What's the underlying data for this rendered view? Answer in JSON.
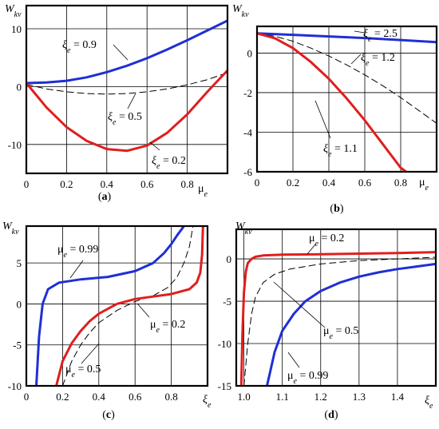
{
  "chart_data": [
    {
      "type": "line",
      "caption": "(a)",
      "ylabel": "W",
      "ylabel_sub": "kv",
      "xlabel": "μ",
      "xlabel_sub": "e",
      "xlim": [
        0,
        1.0
      ],
      "ylim": [
        -15,
        14
      ],
      "xticks": [
        "0",
        "0.2",
        "0.4",
        "0.6",
        "0.8"
      ],
      "xtick_values": [
        0,
        0.2,
        0.4,
        0.6,
        0.8
      ],
      "yticks": [
        "10",
        "0",
        "-10"
      ],
      "ytick_values": [
        10,
        0,
        -10
      ],
      "grid": true,
      "series": [
        {
          "name": "ξe = 0.9",
          "color": "#1f2fd6",
          "style": "solid",
          "x": [
            0,
            0.1,
            0.2,
            0.3,
            0.4,
            0.5,
            0.6,
            0.7,
            0.8,
            0.9,
            1.0
          ],
          "y": [
            0.6,
            0.7,
            1.0,
            1.6,
            2.5,
            3.6,
            4.9,
            6.4,
            8.0,
            9.7,
            11.4
          ]
        },
        {
          "name": "ξe = 0.5",
          "color": "#000000",
          "style": "dashed",
          "x": [
            0,
            0.1,
            0.2,
            0.3,
            0.4,
            0.5,
            0.6,
            0.7,
            0.8,
            0.9,
            1.0
          ],
          "y": [
            0.4,
            -0.4,
            -0.9,
            -1.2,
            -1.3,
            -1.2,
            -0.9,
            -0.4,
            0.3,
            1.2,
            2.4
          ]
        },
        {
          "name": "ξe = 0.2",
          "color": "#e01e1e",
          "style": "solid",
          "x": [
            0,
            0.1,
            0.2,
            0.3,
            0.4,
            0.5,
            0.6,
            0.7,
            0.8,
            0.9,
            1.0
          ],
          "y": [
            0.6,
            -3.6,
            -7.0,
            -9.4,
            -10.8,
            -11.1,
            -10.2,
            -8.0,
            -4.8,
            -0.9,
            2.8
          ]
        }
      ],
      "annotations": [
        {
          "sym": "ξ",
          "sub": "e",
          "rest": " = 0.9"
        },
        {
          "sym": "ξ",
          "sub": "e",
          "rest": " = 0.5"
        },
        {
          "sym": "ξ",
          "sub": "e",
          "rest": " = 0.2"
        }
      ]
    },
    {
      "type": "line",
      "caption": "(b)",
      "ylabel": "W",
      "ylabel_sub": "kv",
      "xlabel": "μ",
      "xlabel_sub": "e",
      "xlim": [
        0,
        1.0
      ],
      "ylim": [
        -6,
        1.35
      ],
      "xticks": [
        "0",
        "0.2",
        "0.4",
        "0.6",
        "0.8"
      ],
      "xtick_values": [
        0,
        0.2,
        0.4,
        0.6,
        0.8
      ],
      "yticks": [
        "0",
        "-2",
        "-4",
        "-6"
      ],
      "ytick_values": [
        0,
        -2,
        -4,
        -6
      ],
      "grid": true,
      "series": [
        {
          "name": "ξe = 2.5",
          "color": "#1f2fd6",
          "style": "solid",
          "x": [
            0,
            0.2,
            0.4,
            0.6,
            0.8,
            1.0
          ],
          "y": [
            1.0,
            0.92,
            0.84,
            0.76,
            0.66,
            0.55
          ]
        },
        {
          "name": "ξe = 1.2",
          "color": "#000000",
          "style": "dashed",
          "x": [
            0,
            0.1,
            0.2,
            0.3,
            0.4,
            0.5,
            0.6,
            0.7,
            0.8,
            0.9,
            1.0
          ],
          "y": [
            1.0,
            0.85,
            0.6,
            0.25,
            -0.15,
            -0.6,
            -1.1,
            -1.65,
            -2.25,
            -2.9,
            -3.55
          ]
        },
        {
          "name": "ξe = 1.1",
          "color": "#e01e1e",
          "style": "solid",
          "x": [
            0,
            0.1,
            0.2,
            0.3,
            0.4,
            0.5,
            0.6,
            0.7,
            0.8,
            0.83
          ],
          "y": [
            1.0,
            0.75,
            0.25,
            -0.45,
            -1.3,
            -2.3,
            -3.4,
            -4.6,
            -5.8,
            -6.0
          ]
        }
      ],
      "annotations": [
        {
          "sym": "ξ",
          "sub": "e",
          "rest": " = 2.5"
        },
        {
          "sym": "ξ",
          "sub": "e",
          "rest": " = 1.2"
        },
        {
          "sym": "ξ",
          "sub": "e",
          "rest": " = 1.1"
        }
      ]
    },
    {
      "type": "line",
      "caption": "(c)",
      "ylabel": "W",
      "ylabel_sub": "kv",
      "xlabel": "ξ",
      "xlabel_sub": "e",
      "xlim": [
        0,
        1.0
      ],
      "ylim": [
        -10,
        9.5
      ],
      "xticks": [
        "0",
        "0.2",
        "0.4",
        "0.6",
        "0.8"
      ],
      "xtick_values": [
        0,
        0.2,
        0.4,
        0.6,
        0.8
      ],
      "yticks": [
        "5",
        "0",
        "-5",
        "-10"
      ],
      "ytick_values": [
        5,
        0,
        -5,
        -10
      ],
      "grid": true,
      "series": [
        {
          "name": "μe = 0.99",
          "color": "#1f2fd6",
          "style": "solid",
          "x": [
            0.055,
            0.07,
            0.09,
            0.12,
            0.18,
            0.3,
            0.45,
            0.6,
            0.7,
            0.76,
            0.8,
            0.83,
            0.87
          ],
          "y": [
            -10.0,
            -4.0,
            0.0,
            1.8,
            2.6,
            3.0,
            3.3,
            4.0,
            5.0,
            6.2,
            7.3,
            8.3,
            9.5
          ]
        },
        {
          "name": "μe = 0.5",
          "color": "#000000",
          "style": "dashed",
          "x": [
            0.2,
            0.25,
            0.3,
            0.35,
            0.4,
            0.5,
            0.6,
            0.7,
            0.78,
            0.83,
            0.87,
            0.9,
            0.92
          ],
          "y": [
            -10.0,
            -7.0,
            -5.0,
            -3.5,
            -2.3,
            -0.8,
            0.3,
            1.0,
            2.0,
            3.2,
            5.0,
            7.0,
            9.5
          ]
        },
        {
          "name": "μe = 0.2",
          "color": "#e01e1e",
          "style": "solid",
          "x": [
            0.165,
            0.2,
            0.25,
            0.3,
            0.35,
            0.4,
            0.5,
            0.6,
            0.7,
            0.8,
            0.9,
            0.94,
            0.96,
            0.97,
            0.975
          ],
          "y": [
            -10.0,
            -7.0,
            -4.8,
            -3.3,
            -2.1,
            -1.2,
            0.0,
            0.6,
            0.9,
            1.2,
            1.8,
            2.6,
            3.8,
            6.0,
            9.5
          ]
        }
      ],
      "annotations": [
        {
          "sym": "μ",
          "sub": "e",
          "rest": " = 0.99"
        },
        {
          "sym": "μ",
          "sub": "e",
          "rest": " = 0.2"
        },
        {
          "sym": "μ",
          "sub": "e",
          "rest": " = 0.5"
        }
      ]
    },
    {
      "type": "line",
      "caption": "(d)",
      "ylabel": "W",
      "ylabel_sub": "kv",
      "xlabel": "ξ",
      "xlabel_sub": "e",
      "xlim": [
        0.98,
        1.5
      ],
      "ylim": [
        -15,
        3.5
      ],
      "xticks": [
        "1.0",
        "1.1",
        "1.2",
        "1.3",
        "1.4"
      ],
      "xtick_values": [
        1.0,
        1.1,
        1.2,
        1.3,
        1.4
      ],
      "yticks": [
        "0",
        "-5",
        "-10",
        "-15"
      ],
      "ytick_values": [
        0,
        -5,
        -10,
        -15
      ],
      "grid": true,
      "series": [
        {
          "name": "μe = 0.2",
          "color": "#e01e1e",
          "style": "solid",
          "x": [
            0.993,
            0.996,
            1.0,
            1.005,
            1.01,
            1.02,
            1.03,
            1.05,
            1.1,
            1.2,
            1.3,
            1.4,
            1.5
          ],
          "y": [
            -15.0,
            -9.0,
            -4.0,
            -1.5,
            -0.5,
            0.0,
            0.25,
            0.4,
            0.5,
            0.55,
            0.62,
            0.7,
            0.8
          ]
        },
        {
          "name": "μe = 0.5",
          "color": "#000000",
          "style": "dashed",
          "x": [
            1.0,
            1.01,
            1.02,
            1.03,
            1.05,
            1.08,
            1.12,
            1.2,
            1.3,
            1.4,
            1.5
          ],
          "y": [
            -15.0,
            -10.0,
            -6.5,
            -4.5,
            -2.8,
            -1.8,
            -1.2,
            -0.6,
            -0.2,
            0.0,
            0.2
          ]
        },
        {
          "name": "μe = 0.99",
          "color": "#1f2fd6",
          "style": "solid",
          "x": [
            1.06,
            1.08,
            1.1,
            1.13,
            1.16,
            1.2,
            1.25,
            1.3,
            1.35,
            1.4,
            1.45,
            1.5
          ],
          "y": [
            -15.0,
            -11.0,
            -8.5,
            -6.5,
            -5.0,
            -3.8,
            -2.8,
            -2.1,
            -1.6,
            -1.2,
            -0.9,
            -0.6
          ]
        }
      ],
      "annotations": [
        {
          "sym": "μ",
          "sub": "e",
          "rest": " = 0.2"
        },
        {
          "sym": "μ",
          "sub": "e",
          "rest": " = 0.5"
        },
        {
          "sym": "μ",
          "sub": "e",
          "rest": " = 0.99"
        }
      ]
    }
  ]
}
